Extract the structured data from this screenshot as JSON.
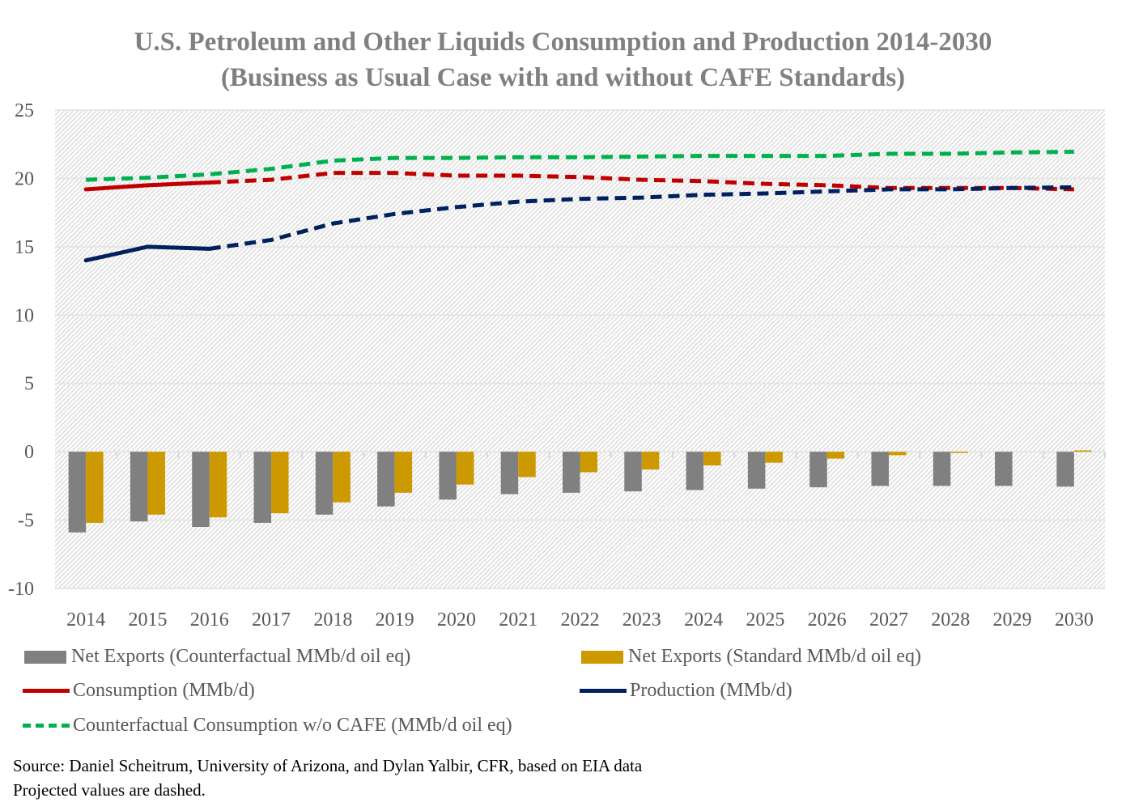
{
  "chart_data": {
    "type": "bar+line",
    "title": "U.S. Petroleum and Other Liquids Consumption and Production 2014-2030",
    "subtitle": "(Business as Usual Case with and without CAFE Standards)",
    "categories": [
      "2014",
      "2015",
      "2016",
      "2017",
      "2018",
      "2019",
      "2020",
      "2021",
      "2022",
      "2023",
      "2024",
      "2025",
      "2026",
      "2027",
      "2028",
      "2029",
      "2030"
    ],
    "ylim": [
      -10,
      25
    ],
    "yticks": [
      "25",
      "20",
      "15",
      "10",
      "5",
      "0",
      "-5",
      "-10"
    ],
    "grid": true,
    "legend_placement": "bottom",
    "series": [
      {
        "name": "Net Exports (Counterfactual MMb/d oil eq)",
        "kind": "bar",
        "color": "#808080",
        "values": [
          -5.9,
          -5.1,
          -5.5,
          -5.2,
          -4.6,
          -4.0,
          -3.5,
          -3.1,
          -3.0,
          -2.9,
          -2.8,
          -2.7,
          -2.6,
          -2.5,
          -2.5,
          -2.5,
          -2.55
        ]
      },
      {
        "name": "Net Exports (Standard MMb/d oil eq)",
        "kind": "bar",
        "color": "#cc9900",
        "values": [
          -5.2,
          -4.6,
          -4.8,
          -4.5,
          -3.7,
          -3.0,
          -2.4,
          -1.85,
          -1.5,
          -1.3,
          -1.0,
          -0.8,
          -0.5,
          -0.25,
          -0.05,
          0,
          0.1
        ]
      },
      {
        "name": "Consumption (MMb/d)",
        "kind": "line",
        "color": "#c00000",
        "dashed_from_index": 2,
        "values": [
          19.2,
          19.5,
          19.7,
          19.9,
          20.4,
          20.4,
          20.2,
          20.2,
          20.1,
          19.9,
          19.8,
          19.6,
          19.5,
          19.3,
          19.3,
          19.3,
          19.2
        ]
      },
      {
        "name": "Production (MMb/d)",
        "kind": "line",
        "color": "#002060",
        "dashed_from_index": 2,
        "values": [
          14.0,
          15.0,
          14.85,
          15.5,
          16.7,
          17.4,
          17.9,
          18.3,
          18.5,
          18.6,
          18.8,
          18.9,
          19.05,
          19.2,
          19.2,
          19.3,
          19.35
        ]
      },
      {
        "name": "Counterfactual Consumption w/o CAFE (MMb/d oil eq)",
        "kind": "line",
        "color": "#00b050",
        "dashed_from_index": 0,
        "values": [
          19.9,
          20.05,
          20.3,
          20.7,
          21.3,
          21.5,
          21.5,
          21.55,
          21.55,
          21.6,
          21.65,
          21.65,
          21.65,
          21.8,
          21.8,
          21.9,
          21.95
        ]
      }
    ]
  },
  "source": {
    "line1": "Source: Daniel Scheitrum, University of Arizona, and Dylan Yalbir, CFR, based on EIA data",
    "line2": "Projected values are dashed."
  }
}
